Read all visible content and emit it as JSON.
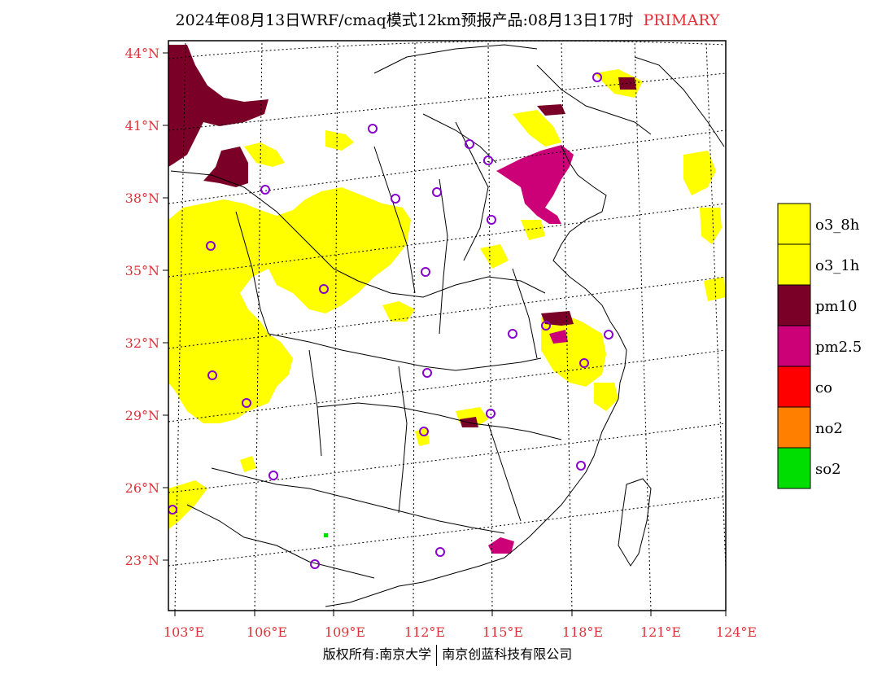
{
  "title": {
    "main": "2024年08月13日WRF/cmaq模式12km预报产品:08月13日17时",
    "tag": "PRIMARY"
  },
  "footer": {
    "left": "版权所有:南京大学",
    "right": "南京创蓝科技有限公司"
  },
  "colors": {
    "axis_label": "#e0303a",
    "o3_8h": "#ffff00",
    "o3_1h": "#ffff00",
    "pm10": "#7a0028",
    "pm25": "#cc0077",
    "co": "#ff0000",
    "no2": "#ff8000",
    "so2": "#00dd00",
    "station": "#8800cc"
  },
  "map": {
    "lat_labels": [
      "44°N",
      "41°N",
      "38°N",
      "35°N",
      "32°N",
      "29°N",
      "26°N",
      "23°N"
    ],
    "lon_labels": [
      "103°E",
      "106°E",
      "109°E",
      "112°E",
      "115°E",
      "118°E",
      "121°E",
      "124°E"
    ]
  },
  "legend": [
    {
      "label": "o3_8h",
      "color": "#ffff00"
    },
    {
      "label": "o3_1h",
      "color": "#ffff00"
    },
    {
      "label": "pm10",
      "color": "#7a0028"
    },
    {
      "label": "pm2.5",
      "color": "#cc0077"
    },
    {
      "label": "co",
      "color": "#ff0000"
    },
    {
      "label": "no2",
      "color": "#ff8000"
    },
    {
      "label": "so2",
      "color": "#00dd00"
    }
  ]
}
